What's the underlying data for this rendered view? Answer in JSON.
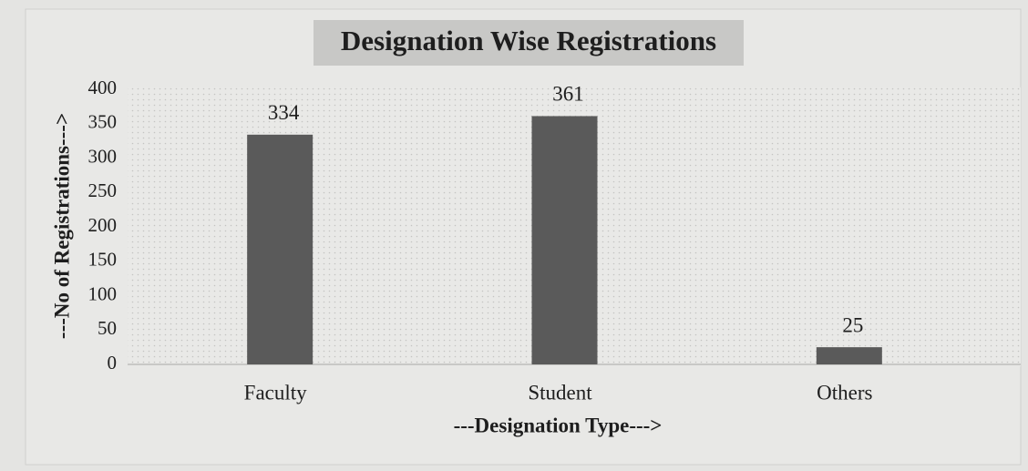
{
  "chart_data": {
    "type": "bar",
    "title": "Designation Wise Registrations",
    "categories": [
      "Faculty",
      "Student",
      "Others"
    ],
    "values": [
      334,
      361,
      25
    ],
    "color": "#5a5a5a",
    "ylim": [
      0,
      400
    ],
    "yticks": [
      0,
      50,
      100,
      150,
      200,
      250,
      300,
      350,
      400
    ],
    "grid": false,
    "x_label": "---Designation Type--->",
    "y_label": "---No of Registrations--->"
  }
}
